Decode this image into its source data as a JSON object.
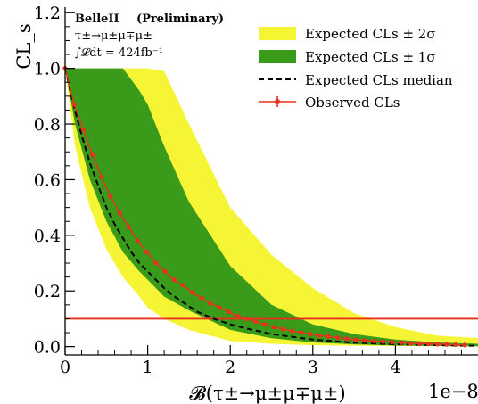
{
  "chart_data": {
    "type": "line",
    "title": "",
    "ylabel": "CL_s",
    "xlabel": "𝓑(τ±→μ±μ∓μ±)",
    "x_multiplier": "1e−8",
    "xlim": [
      0,
      5.0
    ],
    "ylim": [
      -0.03,
      1.22
    ],
    "x_ticks": [
      "0",
      "1",
      "2",
      "3",
      "4"
    ],
    "y_ticks": [
      "0.0",
      "0.2",
      "0.4",
      "0.6",
      "0.8",
      "1.0",
      "1.2"
    ],
    "annotation": {
      "experiment": "BelleII",
      "status": "(Preliminary)",
      "decay": "τ±→μ±μ∓μ±",
      "lumi": "∫𝓛dt = 424fb⁻¹"
    },
    "legend": {
      "position": "top-right",
      "entries": [
        {
          "label": "Expected CLs ± 2σ",
          "color": "#f5f535",
          "style": "band"
        },
        {
          "label": "Expected CLs ± 1σ",
          "color": "#3a9a1a",
          "style": "band"
        },
        {
          "label": "Expected CLs median",
          "color": "#000000",
          "style": "dashed"
        },
        {
          "label": "Observed CLs",
          "color": "#e8321e",
          "style": "line-marker"
        }
      ]
    },
    "horizontal_line": {
      "y": 0.1,
      "color": "#e8321e"
    },
    "x": [
      0.0,
      0.12,
      0.3,
      0.5,
      0.7,
      0.9,
      1.0,
      1.2,
      1.5,
      2.0,
      2.5,
      3.0,
      3.5,
      4.0,
      4.5,
      5.0
    ],
    "band_2sigma": {
      "upper": [
        1.0,
        1.0,
        1.0,
        1.0,
        1.0,
        1.0,
        1.0,
        0.99,
        0.8,
        0.5,
        0.33,
        0.21,
        0.12,
        0.07,
        0.04,
        0.03
      ],
      "lower": [
        1.0,
        0.72,
        0.5,
        0.35,
        0.25,
        0.18,
        0.14,
        0.1,
        0.06,
        0.02,
        0.01,
        0.005,
        0.003,
        0.002,
        0.001,
        0.0
      ]
    },
    "band_1sigma": {
      "upper": [
        1.0,
        1.0,
        1.0,
        1.0,
        1.0,
        0.92,
        0.87,
        0.72,
        0.52,
        0.29,
        0.15,
        0.08,
        0.045,
        0.025,
        0.015,
        0.01
      ],
      "lower": [
        1.0,
        0.8,
        0.6,
        0.45,
        0.34,
        0.27,
        0.24,
        0.18,
        0.13,
        0.06,
        0.03,
        0.015,
        0.008,
        0.004,
        0.002,
        0.001
      ]
    },
    "series": [
      {
        "name": "Expected CLs median",
        "x": [
          0.0,
          0.1,
          0.2,
          0.3,
          0.4,
          0.5,
          0.6,
          0.7,
          0.8,
          0.9,
          1.0,
          1.1,
          1.2,
          1.3,
          1.4,
          1.5,
          1.6,
          1.8,
          2.0,
          2.2,
          2.5,
          3.0,
          3.5,
          4.0,
          4.5,
          5.0
        ],
        "y": [
          1.0,
          0.87,
          0.76,
          0.66,
          0.58,
          0.5,
          0.44,
          0.39,
          0.34,
          0.3,
          0.27,
          0.24,
          0.21,
          0.185,
          0.165,
          0.145,
          0.125,
          0.1,
          0.08,
          0.065,
          0.045,
          0.025,
          0.014,
          0.008,
          0.005,
          0.003
        ]
      },
      {
        "name": "Observed CLs",
        "x": [
          0.0,
          0.11,
          0.22,
          0.33,
          0.44,
          0.55,
          0.66,
          0.77,
          0.88,
          0.99,
          1.1,
          1.21,
          1.32,
          1.43,
          1.54,
          1.65,
          1.76,
          1.87,
          1.98,
          2.09,
          2.2,
          2.31,
          2.42,
          2.53,
          2.64,
          2.75,
          2.86,
          2.97,
          3.08,
          3.19,
          3.3,
          3.41,
          3.52,
          3.63,
          3.74,
          3.85,
          3.96,
          4.07,
          4.18,
          4.29,
          4.4,
          4.51,
          4.62,
          4.73,
          4.84
        ],
        "y": [
          1.0,
          0.87,
          0.78,
          0.69,
          0.61,
          0.54,
          0.48,
          0.43,
          0.38,
          0.34,
          0.3,
          0.27,
          0.24,
          0.22,
          0.195,
          0.175,
          0.155,
          0.14,
          0.125,
          0.11,
          0.1,
          0.09,
          0.08,
          0.07,
          0.063,
          0.056,
          0.05,
          0.045,
          0.04,
          0.036,
          0.032,
          0.028,
          0.025,
          0.022,
          0.02,
          0.018,
          0.016,
          0.014,
          0.012,
          0.011,
          0.01,
          0.009,
          0.008,
          0.007,
          0.006
        ]
      }
    ]
  }
}
